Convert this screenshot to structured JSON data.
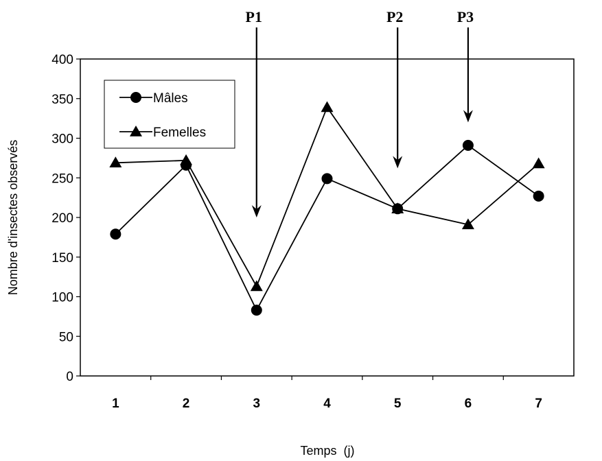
{
  "chart_data": {
    "type": "line",
    "categories": [
      "1",
      "2",
      "3",
      "4",
      "5",
      "6",
      "7"
    ],
    "series": [
      {
        "name": "Mâles",
        "marker": "circle",
        "values": [
          179,
          266,
          83,
          249,
          211,
          291,
          227
        ]
      },
      {
        "name": "Femelles",
        "marker": "triangle",
        "values": [
          269,
          272,
          113,
          339,
          211,
          191,
          268
        ]
      }
    ],
    "xlabel": "Temps  (j)",
    "ylabel": "Nombre  d'insectes  observés",
    "ylim": [
      0,
      400
    ],
    "yticks": [
      0,
      50,
      100,
      150,
      200,
      250,
      300,
      350,
      400
    ],
    "grid": false,
    "legend": "top-left",
    "annotations": [
      {
        "label": "P1",
        "x": "3",
        "arrow_to_y": 200
      },
      {
        "label": "P2",
        "x": "5",
        "arrow_to_y": 262
      },
      {
        "label": "P3",
        "x": "6",
        "arrow_to_y": 320
      }
    ],
    "colors": {
      "line": "#000000",
      "background": "#ffffff"
    }
  }
}
